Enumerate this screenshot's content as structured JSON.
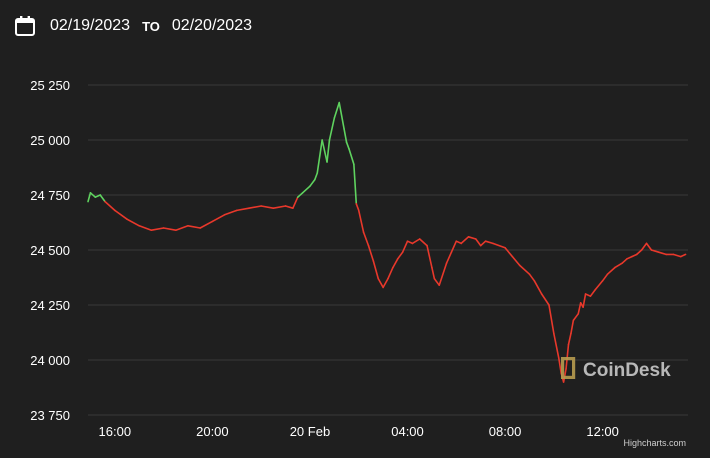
{
  "header": {
    "date_from": "02/19/2023",
    "to_label": "TO",
    "date_to": "02/20/2023",
    "icon": "calendar-icon"
  },
  "watermark": {
    "text": "CoinDesk",
    "icon": "coindesk-logo-icon"
  },
  "credit": "Highcharts.com",
  "colors": {
    "up": "#5fd35f",
    "down": "#e8382b",
    "background": "#1f1f1f",
    "grid": "#3a3a3a"
  },
  "chart_data": {
    "type": "line",
    "title": "",
    "xlabel": "",
    "ylabel": "",
    "x_ticks": [
      "16:00",
      "20:00",
      "20 Feb",
      "04:00",
      "08:00",
      "12:00"
    ],
    "x_tick_hours": [
      16,
      20,
      24,
      28,
      32,
      36
    ],
    "y_ticks": [
      "25 250",
      "25 000",
      "24 750",
      "24 500",
      "24 250",
      "24 000",
      "23 750"
    ],
    "y_tick_values": [
      25250,
      25000,
      24750,
      24500,
      24250,
      24000,
      23750
    ],
    "ylim": [
      23750,
      25250
    ],
    "xlim_hours": [
      14.9,
      39.5
    ],
    "grid": true,
    "legend": "none",
    "series": [
      {
        "x_hours": [
          14.9,
          15.0,
          15.2,
          15.4,
          15.6,
          16.0,
          16.5,
          17.0,
          17.5,
          18.0,
          18.5,
          19.0,
          19.5,
          20.0,
          20.5,
          21.0,
          21.5,
          22.0,
          22.5,
          23.0,
          23.3,
          23.5,
          23.7,
          24.0,
          24.2,
          24.3,
          24.5,
          24.7,
          24.8,
          25.0,
          25.2,
          25.4,
          25.5,
          25.6,
          25.8,
          25.9,
          26.0,
          26.2,
          26.4,
          26.6,
          26.8,
          27.0,
          27.2,
          27.4,
          27.6,
          27.8,
          28.0,
          28.2,
          28.5,
          28.8,
          29.0,
          29.1,
          29.3,
          29.6,
          29.8,
          30.0,
          30.2,
          30.5,
          30.8,
          31.0,
          31.2,
          31.5,
          32.0,
          32.3,
          32.6,
          33.0,
          33.2,
          33.5,
          33.8,
          34.0,
          34.2,
          34.3,
          34.4,
          34.5,
          34.6,
          34.7,
          34.8,
          35.0,
          35.1,
          35.2,
          35.3,
          35.5,
          35.7,
          36.0,
          36.2,
          36.5,
          36.8,
          37.0,
          37.2,
          37.4,
          37.6,
          37.8,
          38.0,
          38.3,
          38.6,
          38.9,
          39.2,
          39.4
        ],
        "values": [
          24720,
          24760,
          24740,
          24750,
          24720,
          24680,
          24640,
          24610,
          24590,
          24600,
          24590,
          24610,
          24600,
          24630,
          24660,
          24680,
          24690,
          24700,
          24690,
          24700,
          24690,
          24740,
          24760,
          24790,
          24820,
          24850,
          25000,
          24900,
          25000,
          25100,
          25170,
          25050,
          24990,
          24960,
          24890,
          24710,
          24680,
          24580,
          24520,
          24450,
          24370,
          24330,
          24370,
          24420,
          24460,
          24490,
          24540,
          24530,
          24550,
          24520,
          24420,
          24370,
          24340,
          24440,
          24490,
          24540,
          24530,
          24560,
          24550,
          24520,
          24540,
          24530,
          24510,
          24470,
          24430,
          24390,
          24360,
          24300,
          24250,
          24120,
          24010,
          23940,
          23900,
          23960,
          24070,
          24120,
          24180,
          24210,
          24260,
          24240,
          24300,
          24290,
          24320,
          24360,
          24390,
          24420,
          24440,
          24460,
          24470,
          24480,
          24500,
          24530,
          24500,
          24490,
          24480,
          24480,
          24470,
          24480
        ]
      }
    ]
  }
}
